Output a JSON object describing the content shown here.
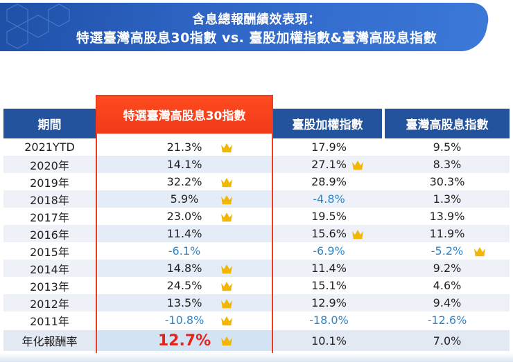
{
  "title": {
    "line1": "含息總報酬績效表現：",
    "line2": "特選臺灣高股息30指數 vs. 臺股加權指數&臺灣高股息指數"
  },
  "headers": {
    "period": "期間",
    "featured": "特選臺灣高股息30指數",
    "taiex": "臺股加權指數",
    "high_dividend": "臺灣高股息指數"
  },
  "colors": {
    "header_blue": "#24539e",
    "highlight_red": "#ef3b1e",
    "negative_blue": "#2d86c9",
    "crown_gold": "#f2b705"
  },
  "crown_icon": "crown-icon",
  "rows": [
    {
      "period": "2021YTD",
      "featured": "21.3%",
      "featured_crown": true,
      "taiex": "17.9%",
      "taiex_crown": false,
      "high_dividend": "9.5%",
      "high_dividend_crown": false
    },
    {
      "period": "2020年",
      "featured": "14.1%",
      "featured_crown": false,
      "taiex": "27.1%",
      "taiex_crown": true,
      "high_dividend": "8.3%",
      "high_dividend_crown": false
    },
    {
      "period": "2019年",
      "featured": "32.2%",
      "featured_crown": true,
      "taiex": "28.9%",
      "taiex_crown": false,
      "high_dividend": "30.3%",
      "high_dividend_crown": false
    },
    {
      "period": "2018年",
      "featured": "5.9%",
      "featured_crown": true,
      "taiex": "-4.8%",
      "taiex_crown": false,
      "high_dividend": "1.3%",
      "high_dividend_crown": false
    },
    {
      "period": "2017年",
      "featured": "23.0%",
      "featured_crown": true,
      "taiex": "19.5%",
      "taiex_crown": false,
      "high_dividend": "13.9%",
      "high_dividend_crown": false
    },
    {
      "period": "2016年",
      "featured": "11.4%",
      "featured_crown": false,
      "taiex": "15.6%",
      "taiex_crown": true,
      "high_dividend": "11.9%",
      "high_dividend_crown": false
    },
    {
      "period": "2015年",
      "featured": "-6.1%",
      "featured_crown": false,
      "taiex": "-6.9%",
      "taiex_crown": false,
      "high_dividend": "-5.2%",
      "high_dividend_crown": true
    },
    {
      "period": "2014年",
      "featured": "14.8%",
      "featured_crown": true,
      "taiex": "11.4%",
      "taiex_crown": false,
      "high_dividend": "9.2%",
      "high_dividend_crown": false
    },
    {
      "period": "2013年",
      "featured": "24.5%",
      "featured_crown": true,
      "taiex": "15.1%",
      "taiex_crown": false,
      "high_dividend": "4.6%",
      "high_dividend_crown": false
    },
    {
      "period": "2012年",
      "featured": "13.5%",
      "featured_crown": true,
      "taiex": "12.9%",
      "taiex_crown": false,
      "high_dividend": "9.4%",
      "high_dividend_crown": false
    },
    {
      "period": "2011年",
      "featured": "-10.8%",
      "featured_crown": true,
      "taiex": "-18.0%",
      "taiex_crown": false,
      "high_dividend": "-12.6%",
      "high_dividend_crown": false
    }
  ],
  "annualized": {
    "label": "年化報酬率",
    "featured": "12.7%",
    "featured_crown": true,
    "taiex": "10.1%",
    "high_dividend": "7.0%"
  }
}
